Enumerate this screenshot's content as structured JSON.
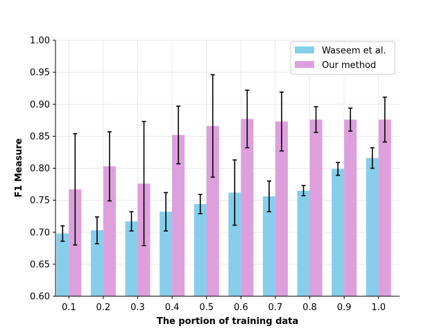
{
  "chart_data": {
    "type": "bar",
    "title": "",
    "xlabel": "The portion of training data",
    "ylabel": "F1 Measure",
    "categories": [
      "0.1",
      "0.2",
      "0.3",
      "0.4",
      "0.5",
      "0.6",
      "0.7",
      "0.8",
      "0.9",
      "1.0"
    ],
    "ylim": [
      0.6,
      1.0
    ],
    "yticks": [
      "0.60",
      "0.65",
      "0.70",
      "0.75",
      "0.80",
      "0.85",
      "0.90",
      "0.95",
      "1.00"
    ],
    "grid": true,
    "legend_position": "top-right",
    "series": [
      {
        "name": "Waseem et al.",
        "color": "#87ceeb",
        "values": [
          0.698,
          0.703,
          0.717,
          0.732,
          0.744,
          0.762,
          0.756,
          0.765,
          0.799,
          0.816
        ],
        "errors": [
          0.012,
          0.021,
          0.015,
          0.03,
          0.015,
          0.051,
          0.024,
          0.008,
          0.01,
          0.016
        ]
      },
      {
        "name": "Our method",
        "color": "#dda0dd",
        "values": [
          0.767,
          0.803,
          0.776,
          0.852,
          0.866,
          0.877,
          0.873,
          0.876,
          0.876,
          0.876
        ],
        "errors": [
          0.087,
          0.054,
          0.097,
          0.045,
          0.08,
          0.045,
          0.046,
          0.02,
          0.018,
          0.035
        ]
      }
    ]
  }
}
